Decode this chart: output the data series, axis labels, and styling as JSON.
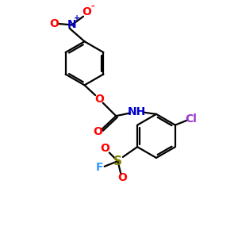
{
  "bg_color": "#ffffff",
  "bond_color": "#000000",
  "O_color": "#ff0000",
  "N_color": "#0000cd",
  "Cl_color": "#9933cc",
  "S_color": "#808000",
  "F_color": "#3399ff",
  "line_width": 1.6,
  "figsize": [
    3.0,
    3.0
  ],
  "dpi": 100,
  "xlim": [
    0,
    10
  ],
  "ylim": [
    0,
    10
  ]
}
